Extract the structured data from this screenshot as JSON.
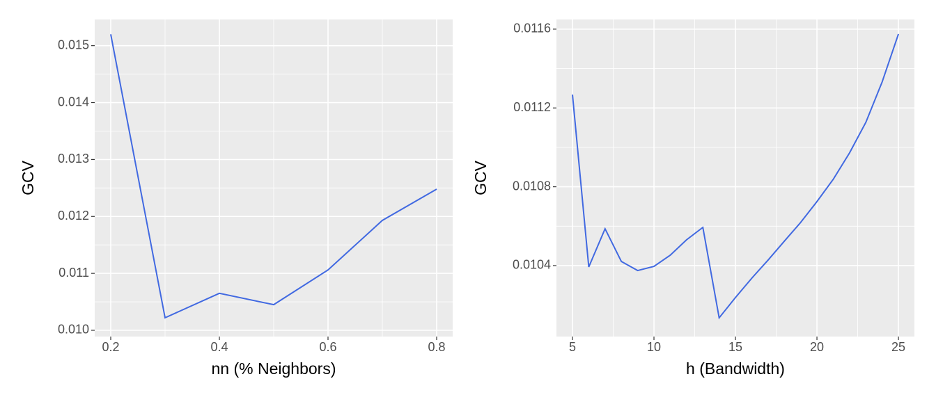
{
  "chart_data": [
    {
      "type": "line",
      "x_label": "nn (% Neighbors)",
      "y_label": "GCV",
      "x": [
        0.2,
        0.3,
        0.4,
        0.5,
        0.6,
        0.7,
        0.8
      ],
      "series": [
        {
          "color": "#4169e1",
          "values": [
            0.0152,
            0.01022,
            0.01065,
            0.01045,
            0.01106,
            0.01193,
            0.01248
          ]
        }
      ],
      "xlim": [
        0.1705,
        0.8295
      ],
      "ylim": [
        0.00989,
        0.01546
      ],
      "xticks": [
        0.2,
        0.4,
        0.6,
        0.8
      ],
      "yticks": [
        {
          "value": 0.01,
          "label": "0.010"
        },
        0.011,
        0.012,
        0.013,
        0.014,
        0.015
      ],
      "grid": true
    },
    {
      "type": "line",
      "x_label": "h (Bandwidth)",
      "y_label": "GCV",
      "x": [
        5,
        6,
        7,
        8,
        9,
        10,
        11,
        12,
        13,
        14,
        15,
        16,
        17,
        18,
        19,
        20,
        21,
        22,
        23,
        24,
        25
      ],
      "series": [
        {
          "color": "#4169e1",
          "values": [
            0.011268,
            0.010393,
            0.010587,
            0.010421,
            0.010375,
            0.010396,
            0.010453,
            0.010531,
            0.010594,
            0.010135,
            0.010238,
            0.010336,
            0.010428,
            0.010524,
            0.010619,
            0.010725,
            0.010838,
            0.010972,
            0.011127,
            0.011332,
            0.011575
          ]
        }
      ],
      "xlim": [
        4.017,
        25.98
      ],
      "ylim": [
        0.01004,
        0.011649
      ],
      "xticks": [
        5,
        10,
        15,
        20,
        25
      ],
      "yticks": [
        0.0104,
        0.0108,
        0.0112,
        0.0116
      ],
      "grid": true
    }
  ]
}
